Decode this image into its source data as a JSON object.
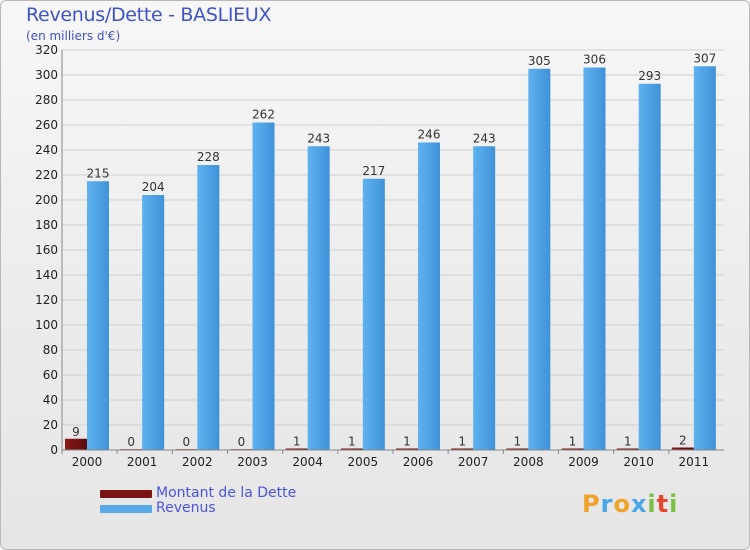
{
  "title": "Revenus/Dette - BASLIEUX",
  "subtitle": "(en milliers d'€)",
  "logo": {
    "text": "Proxiti"
  },
  "colors": {
    "debt": "#7a1414",
    "revenue": "#57a9e8",
    "grid": "#cfcfcf",
    "title": "#3f53c9"
  },
  "legend": {
    "debt_label": "Montant de la Dette",
    "revenue_label": "Revenus"
  },
  "chart_data": {
    "type": "bar",
    "title": "Revenus/Dette - BASLIEUX",
    "ylabel": "(en milliers d'€)",
    "xlabel": "",
    "ylim": [
      0,
      320
    ],
    "yticks": [
      0,
      20,
      40,
      60,
      80,
      100,
      120,
      140,
      160,
      180,
      200,
      220,
      240,
      260,
      280,
      300,
      320
    ],
    "categories": [
      "2000",
      "2001",
      "2002",
      "2003",
      "2004",
      "2005",
      "2006",
      "2007",
      "2008",
      "2009",
      "2010",
      "2011"
    ],
    "series": [
      {
        "name": "Montant de la Dette",
        "values": [
          9,
          0,
          0,
          0,
          1,
          1,
          1,
          1,
          1,
          1,
          1,
          2
        ]
      },
      {
        "name": "Revenus",
        "values": [
          215,
          204,
          228,
          262,
          243,
          217,
          246,
          243,
          305,
          306,
          293,
          307
        ]
      }
    ],
    "grid": true,
    "legend_position": "bottom-left"
  }
}
